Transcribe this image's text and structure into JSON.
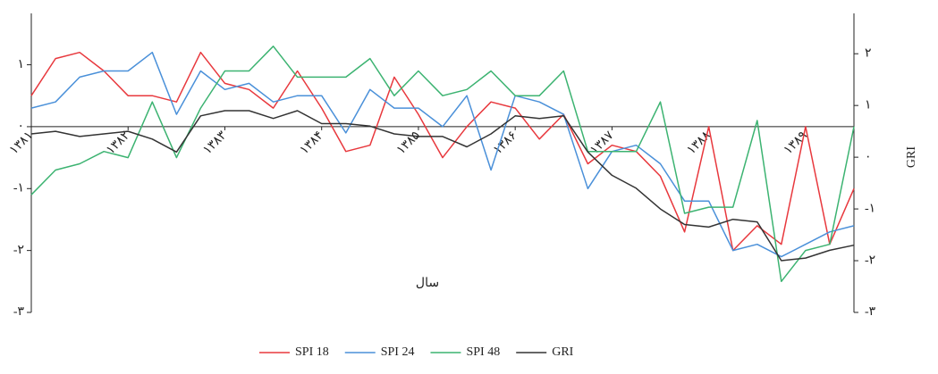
{
  "chart_data": {
    "type": "line",
    "x_label": "سال",
    "y2_label": "GRI",
    "x": [
      1381,
      1381.25,
      1381.5,
      1381.75,
      1382,
      1382.25,
      1382.5,
      1382.75,
      1383,
      1383.25,
      1383.5,
      1383.75,
      1384,
      1384.25,
      1384.5,
      1384.75,
      1385,
      1385.25,
      1385.5,
      1385.75,
      1386,
      1386.25,
      1386.5,
      1386.75,
      1387,
      1387.25,
      1387.5,
      1387.75,
      1388,
      1388.25,
      1388.5,
      1388.75,
      1389,
      1389.25,
      1389.5
    ],
    "xlim": [
      1381,
      1389.5
    ],
    "xticks": [
      {
        "value": 1381,
        "label": "۱۳۸۱"
      },
      {
        "value": 1382,
        "label": "۱۳۸۲"
      },
      {
        "value": 1383,
        "label": "۱۳۸۳"
      },
      {
        "value": 1384,
        "label": "۱۳۸۴"
      },
      {
        "value": 1385,
        "label": "۱۳۸۵"
      },
      {
        "value": 1386,
        "label": "۱۳۸۶"
      },
      {
        "value": 1387,
        "label": "۱۳۸۷"
      },
      {
        "value": 1388,
        "label": "۱۳۸۸"
      },
      {
        "value": 1389,
        "label": "۱۳۸۹"
      }
    ],
    "ylim": [
      -3,
      1.83
    ],
    "yticks": [
      {
        "value": 1,
        "label": "۱"
      },
      {
        "value": 0,
        "label": "۰"
      },
      {
        "value": -1,
        "label": "-۱"
      },
      {
        "value": -2,
        "label": "-۲"
      },
      {
        "value": -3,
        "label": "-۳"
      }
    ],
    "y2lim": [
      -3,
      2.78
    ],
    "y2ticks": [
      {
        "value": 2,
        "label": "۲"
      },
      {
        "value": 1,
        "label": "۱"
      },
      {
        "value": 0,
        "label": "۰"
      },
      {
        "value": -1,
        "label": "-۱"
      },
      {
        "value": -2,
        "label": "-۲"
      },
      {
        "value": -3,
        "label": "-۳"
      }
    ],
    "series": [
      {
        "name": "SPI 18",
        "color": "#e8383d",
        "values": [
          0.5,
          1.1,
          1.2,
          0.9,
          0.5,
          0.5,
          0.4,
          1.2,
          0.7,
          0.6,
          0.3,
          0.9,
          0.3,
          -0.4,
          -0.3,
          0.8,
          0.2,
          -0.5,
          0.0,
          0.4,
          0.3,
          -0.2,
          0.2,
          -0.6,
          -0.3,
          -0.4,
          -0.8,
          -1.7,
          0.0,
          -2.0,
          -1.6,
          -1.9,
          0.0,
          -1.9,
          -1.0
        ]
      },
      {
        "name": "SPI 24",
        "color": "#4a90d9",
        "values": [
          0.3,
          0.4,
          0.8,
          0.9,
          0.9,
          1.2,
          0.2,
          0.9,
          0.6,
          0.7,
          0.4,
          0.5,
          0.5,
          -0.1,
          0.6,
          0.3,
          0.3,
          0.0,
          0.5,
          -0.7,
          0.5,
          0.4,
          0.2,
          -1.0,
          -0.4,
          -0.3,
          -0.6,
          -1.2,
          -1.2,
          -2.0,
          -1.9,
          -2.1,
          -1.9,
          -1.7,
          -1.6
        ]
      },
      {
        "name": "SPI 48",
        "color": "#3cb371",
        "values": [
          -1.1,
          -0.7,
          -0.6,
          -0.4,
          -0.5,
          0.4,
          -0.5,
          0.3,
          0.9,
          0.9,
          1.3,
          0.8,
          0.8,
          0.8,
          1.1,
          0.5,
          0.9,
          0.5,
          0.6,
          0.9,
          0.5,
          0.5,
          0.9,
          -0.4,
          -0.4,
          -0.4,
          0.4,
          -1.4,
          -1.3,
          -1.3,
          0.1,
          -2.5,
          -2.0,
          -1.9,
          0.0
        ]
      },
      {
        "name": "GRI",
        "color": "#333333",
        "axis": "y2",
        "values": [
          0.45,
          0.5,
          0.4,
          0.45,
          0.5,
          0.35,
          0.1,
          0.8,
          0.9,
          0.9,
          0.75,
          0.9,
          0.65,
          0.65,
          0.6,
          0.45,
          0.4,
          0.4,
          0.2,
          0.45,
          0.8,
          0.75,
          0.8,
          0.1,
          -0.35,
          -0.6,
          -1.0,
          -1.3,
          -1.35,
          -1.2,
          -1.25,
          -2.0,
          -1.95,
          -1.8,
          -1.7
        ]
      }
    ]
  }
}
